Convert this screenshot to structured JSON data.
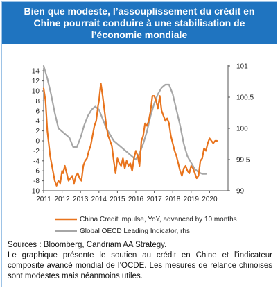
{
  "title": "Bien que modeste, l’assouplissement du crédit en Chine pourrait conduire à une stabilisation de l’économie mondiale",
  "sources": "Sources : Bloomberg, Candriam AA Strategy.",
  "description": "Le graphique présente le soutien au crédit en Chine et l’indicateur composite avancé mondial de l’OCDE. Les mesures de relance chinoises sont modestes mais néanmoins utiles.",
  "colors": {
    "header": "#1f74c0",
    "china": "#e8731c",
    "oecd": "#a6a6a6"
  },
  "chart_data": {
    "type": "line",
    "x_ticks": [
      "2011",
      "2012",
      "2013",
      "2014",
      "2015",
      "2016",
      "2017",
      "2018",
      "2019",
      "2020"
    ],
    "y_left_ticks": [
      "14",
      "12",
      "10",
      "8",
      "6",
      "4",
      "2",
      "0",
      "-2",
      "-4",
      "-6",
      "-8",
      "-10"
    ],
    "y_right_ticks": [
      "101",
      "100.5",
      "100",
      "99.5",
      "99"
    ],
    "ylim_left": [
      -10,
      15
    ],
    "ylim_right": [
      99,
      101
    ],
    "grid": false,
    "legend_position": "bottom",
    "series": [
      {
        "name": "China Credit impulse, YoY, advanced by 10 months",
        "axis": "left",
        "color": "#e8731c",
        "x": [
          2011.0,
          2011.1,
          2011.2,
          2011.35,
          2011.5,
          2011.6,
          2011.7,
          2011.8,
          2011.9,
          2012.0,
          2012.05,
          2012.15,
          2012.25,
          2012.35,
          2012.45,
          2012.55,
          2012.65,
          2012.75,
          2012.85,
          2012.95,
          2013.05,
          2013.15,
          2013.25,
          2013.35,
          2013.45,
          2013.55,
          2013.65,
          2013.75,
          2013.85,
          2013.95,
          2014.0,
          2014.1,
          2014.2,
          2014.3,
          2014.4,
          2014.5,
          2014.6,
          2014.7,
          2014.8,
          2014.9,
          2015.0,
          2015.1,
          2015.2,
          2015.3,
          2015.4,
          2015.5,
          2015.6,
          2015.7,
          2015.8,
          2015.9,
          2016.0,
          2016.1,
          2016.2,
          2016.3,
          2016.4,
          2016.5,
          2016.6,
          2016.7,
          2016.8,
          2016.9,
          2017.0,
          2017.1,
          2017.2,
          2017.3,
          2017.4,
          2017.5,
          2017.6,
          2017.7,
          2017.8,
          2017.9,
          2018.0,
          2018.1,
          2018.2,
          2018.3,
          2018.4,
          2018.5,
          2018.6,
          2018.7,
          2018.8,
          2018.9,
          2019.0,
          2019.1,
          2019.2,
          2019.3,
          2019.4,
          2019.5,
          2019.6,
          2019.7,
          2019.8,
          2019.9,
          2020.0,
          2020.1,
          2020.2,
          2020.3,
          2020.4
        ],
        "values": [
          10.5,
          8,
          2,
          -3,
          -6,
          -8,
          -9,
          -8,
          -8.5,
          -6,
          -6.5,
          -5,
          -6.5,
          -8,
          -7.5,
          -7,
          -8.5,
          -7,
          -6.5,
          -7.5,
          -8,
          -5,
          -4,
          -3.5,
          -2,
          -1,
          1,
          3,
          4,
          7,
          8,
          11.5,
          9,
          6,
          3,
          1,
          0,
          -1,
          -4,
          -6.5,
          -3.5,
          -4.5,
          -5,
          -3.5,
          -5.5,
          -4,
          -5,
          -4.5,
          -6,
          -3.5,
          -2,
          -3,
          -5,
          0,
          1,
          3.5,
          3,
          4,
          6,
          9,
          9,
          8,
          6.5,
          9,
          6,
          5,
          4,
          4.5,
          3.5,
          1,
          -0.5,
          -2,
          -3,
          -4.5,
          -6,
          -7,
          -5.5,
          -5,
          -6,
          -6.5,
          -5,
          -5.5,
          -6.5,
          -7.5,
          -7,
          -4,
          -3.5,
          -1.5,
          -2,
          -0.5,
          0.5,
          0,
          -0.5,
          0,
          0
        ]
      },
      {
        "name": "Global OECD Leading Indicator, rhs",
        "axis": "right",
        "color": "#a6a6a6",
        "x": [
          2011.0,
          2011.2,
          2011.4,
          2011.6,
          2011.8,
          2012.0,
          2012.2,
          2012.4,
          2012.6,
          2012.8,
          2013.0,
          2013.2,
          2013.4,
          2013.6,
          2013.8,
          2014.0,
          2014.2,
          2014.4,
          2014.6,
          2014.8,
          2015.0,
          2015.2,
          2015.4,
          2015.6,
          2015.8,
          2016.0,
          2016.2,
          2016.4,
          2016.6,
          2016.8,
          2017.0,
          2017.2,
          2017.4,
          2017.6,
          2017.8,
          2018.0,
          2018.2,
          2018.4,
          2018.6,
          2018.8,
          2019.0,
          2019.2,
          2019.4,
          2019.6,
          2019.8
        ],
        "values": [
          101.0,
          100.8,
          100.55,
          100.25,
          100.0,
          99.95,
          99.9,
          99.85,
          99.7,
          99.7,
          99.85,
          100.05,
          100.2,
          100.3,
          100.35,
          100.3,
          100.15,
          100.0,
          99.9,
          99.8,
          99.75,
          99.7,
          99.65,
          99.6,
          99.55,
          99.5,
          99.6,
          99.75,
          99.95,
          100.2,
          100.4,
          100.55,
          100.65,
          100.7,
          100.7,
          100.55,
          100.3,
          100.05,
          99.75,
          99.55,
          99.45,
          99.35,
          99.3,
          99.27,
          99.27
        ]
      }
    ]
  }
}
